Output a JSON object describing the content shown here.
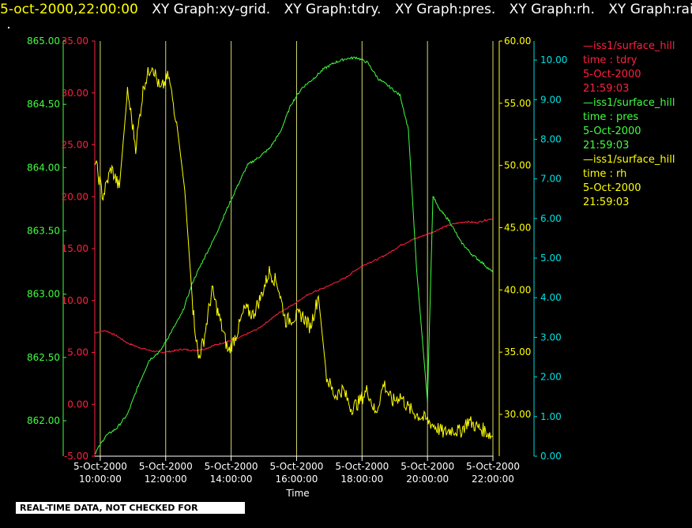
{
  "header": {
    "timestamp": "5-oct-2000,22:00:00",
    "graphs": [
      "XY Graph:xy-grid.",
      "XY Graph:tdry.",
      "XY Graph:pres.",
      "XY Graph:rh.",
      "XY Graph:rain"
    ]
  },
  "disclaimer": "REAL-TIME DATA, NOT CHECKED FOR QUALITY",
  "legend": [
    {
      "station": "—iss1/surface_hill",
      "field": "time : tdry",
      "date": "5-Oct-2000",
      "time": "21:59:03",
      "color": "#ff2040"
    },
    {
      "station": "—iss1/surface_hill",
      "field": "time : pres",
      "date": "5-Oct-2000",
      "time": "21:59:03",
      "color": "#40ff40"
    },
    {
      "station": "—iss1/surface_hill",
      "field": "time : rh",
      "date": "5-Oct-2000",
      "time": "21:59:03",
      "color": "#ffff00"
    }
  ],
  "chart_data": {
    "type": "line",
    "xlabel": "Time",
    "x_ticks": [
      {
        "date": "5-Oct-2000",
        "time": "10:00:00"
      },
      {
        "date": "5-Oct-2000",
        "time": "12:00:00"
      },
      {
        "date": "5-Oct-2000",
        "time": "14:00:00"
      },
      {
        "date": "5-Oct-2000",
        "time": "16:00:00"
      },
      {
        "date": "5-Oct-2000",
        "time": "18:00:00"
      },
      {
        "date": "5-Oct-2000",
        "time": "20:00:00"
      },
      {
        "date": "5-Oct-2000",
        "time": "22:00:00"
      }
    ],
    "xlim": [
      "5-Oct-2000 09:50",
      "5-Oct-2000 22:00"
    ],
    "grid": "vertical",
    "legend_position": "right",
    "axes": {
      "pres": {
        "range": [
          861.72,
          865.0
        ],
        "ticks": [
          "862.00",
          "862.50",
          "863.00",
          "863.50",
          "864.00",
          "864.50",
          "865.00"
        ],
        "color": "#40ff40"
      },
      "tdry": {
        "range": [
          -5.0,
          35.0
        ],
        "ticks": [
          "-5.00",
          "0.00",
          "5.00",
          "10.00",
          "15.00",
          "20.00",
          "25.00",
          "30.00",
          "35.00"
        ],
        "color": "#ff2040"
      },
      "rh": {
        "range": [
          26.64,
          60.0
        ],
        "ticks": [
          "30.00",
          "35.00",
          "40.00",
          "45.00",
          "50.00",
          "55.00",
          "60.00"
        ],
        "color": "#ffff00"
      },
      "rain": {
        "range": [
          0.0,
          10.48
        ],
        "ticks": [
          "0.00",
          "1.00",
          "2.00",
          "3.00",
          "4.00",
          "5.00",
          "6.00",
          "7.00",
          "8.00",
          "9.00",
          "10.00"
        ],
        "color": "#00e0e0"
      }
    },
    "series": [
      {
        "name": "tdry",
        "axis": "tdry",
        "color": "#ff2040",
        "x": [
          "09:50",
          "10:10",
          "10:30",
          "10:50",
          "11:10",
          "11:30",
          "11:50",
          "12:10",
          "12:30",
          "12:50",
          "13:10",
          "13:30",
          "13:50",
          "14:10",
          "14:30",
          "14:50",
          "15:10",
          "15:30",
          "15:50",
          "16:10",
          "16:30",
          "16:50",
          "17:10",
          "17:30",
          "17:50",
          "18:10",
          "18:30",
          "18:50",
          "19:10",
          "19:30",
          "19:50",
          "20:10",
          "20:30",
          "20:50",
          "21:10",
          "21:30",
          "21:50",
          "22:00"
        ],
        "y": [
          6.9,
          7.1,
          6.6,
          5.9,
          5.5,
          5.2,
          5.0,
          5.1,
          5.3,
          5.2,
          5.3,
          5.7,
          6.0,
          6.3,
          6.8,
          7.3,
          8.1,
          8.9,
          9.5,
          10.2,
          10.8,
          11.2,
          11.7,
          12.2,
          13.0,
          13.6,
          14.0,
          14.6,
          15.3,
          15.8,
          16.2,
          16.6,
          17.1,
          17.4,
          17.6,
          17.5,
          17.8,
          17.9
        ]
      },
      {
        "name": "pres",
        "axis": "pres",
        "color": "#40ff40",
        "x": [
          "09:50",
          "10:10",
          "10:30",
          "10:50",
          "11:10",
          "11:30",
          "11:50",
          "12:10",
          "12:30",
          "12:50",
          "13:10",
          "13:30",
          "13:50",
          "14:10",
          "14:30",
          "14:50",
          "15:10",
          "15:30",
          "15:50",
          "16:10",
          "16:30",
          "16:50",
          "17:10",
          "17:30",
          "17:50",
          "18:10",
          "18:30",
          "18:50",
          "19:10",
          "19:25",
          "19:40",
          "20:00",
          "20:10",
          "20:20",
          "20:40",
          "21:00",
          "21:20",
          "21:40",
          "22:00"
        ],
        "y": [
          861.74,
          861.88,
          861.94,
          862.05,
          862.28,
          862.48,
          862.55,
          862.7,
          862.85,
          863.1,
          863.28,
          863.45,
          863.65,
          863.84,
          864.02,
          864.08,
          864.15,
          864.28,
          864.5,
          864.63,
          864.7,
          864.78,
          864.83,
          864.86,
          864.87,
          864.83,
          864.7,
          864.64,
          864.57,
          864.3,
          863.2,
          862.15,
          863.78,
          863.68,
          863.58,
          863.42,
          863.32,
          863.25,
          863.17
        ]
      },
      {
        "name": "rh",
        "axis": "rh",
        "color": "#ffff00",
        "x": [
          "09:50",
          "10:05",
          "10:20",
          "10:35",
          "10:50",
          "11:05",
          "11:20",
          "11:35",
          "11:50",
          "12:05",
          "12:20",
          "12:35",
          "12:50",
          "13:00",
          "13:10",
          "13:25",
          "13:40",
          "13:55",
          "14:10",
          "14:25",
          "14:40",
          "14:55",
          "15:10",
          "15:25",
          "15:40",
          "15:55",
          "16:10",
          "16:25",
          "16:40",
          "16:55",
          "17:10",
          "17:25",
          "17:40",
          "17:55",
          "18:10",
          "18:25",
          "18:40",
          "18:55",
          "19:10",
          "19:25",
          "19:40",
          "20:00",
          "20:15",
          "20:30",
          "20:45",
          "21:00",
          "21:15",
          "21:30",
          "21:45",
          "22:00"
        ],
        "y": [
          50.5,
          47.5,
          49.8,
          48.2,
          56.0,
          51.5,
          56.5,
          58.2,
          56.0,
          57.2,
          53.5,
          48.0,
          38.5,
          34.5,
          36.0,
          40.0,
          37.5,
          35.0,
          36.5,
          38.5,
          38.0,
          39.5,
          41.5,
          40.5,
          37.5,
          37.8,
          38.0,
          37.0,
          39.5,
          33.0,
          31.5,
          32.0,
          30.5,
          31.0,
          32.0,
          30.0,
          32.5,
          31.0,
          31.5,
          30.5,
          30.0,
          29.5,
          29.0,
          28.5,
          28.8,
          28.6,
          29.5,
          29.0,
          28.7,
          28.2
        ]
      },
      {
        "name": "rain",
        "axis": "rain",
        "color": "#00e0e0",
        "x": [],
        "y": []
      }
    ]
  }
}
